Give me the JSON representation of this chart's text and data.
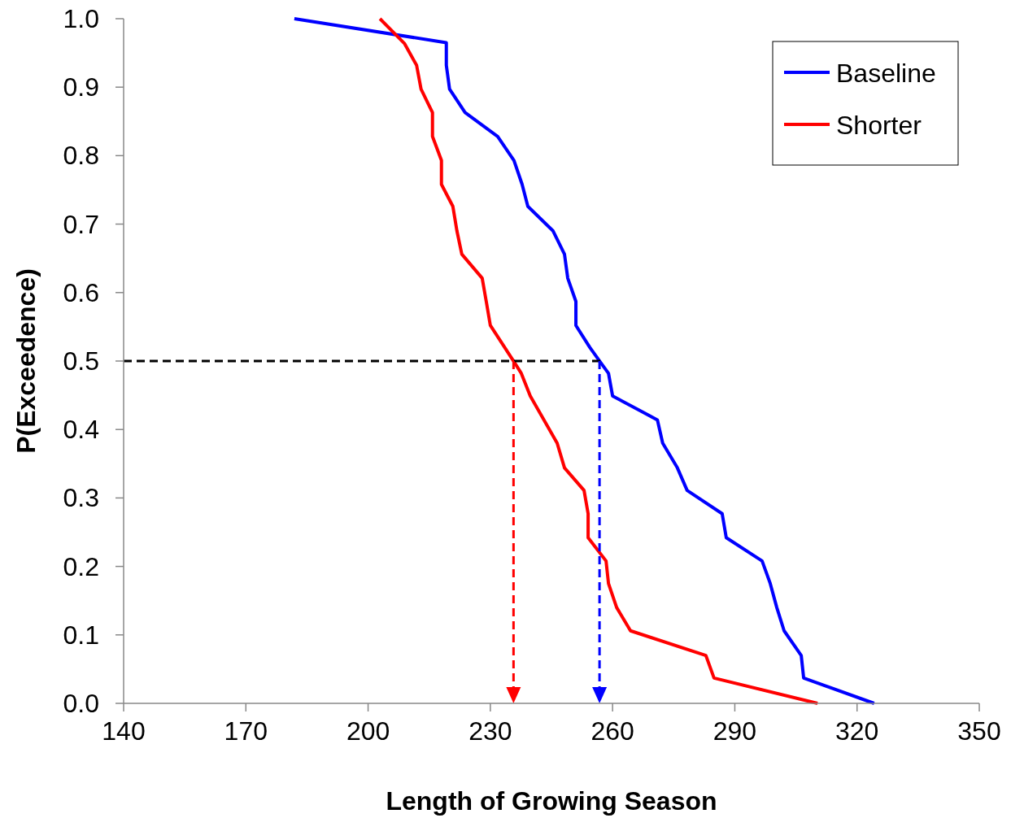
{
  "chart_data": {
    "type": "line",
    "xlabel": "Length of Growing Season",
    "ylabel": "P(Exceedence)",
    "xlim": [
      140,
      350
    ],
    "xticks": [
      140,
      170,
      200,
      230,
      260,
      290,
      320,
      350
    ],
    "ylim": [
      0,
      1
    ],
    "yticks": [
      {
        "value": 0,
        "label": "0.0"
      },
      {
        "value": 0.1,
        "label": "0.1"
      },
      {
        "value": 0.2,
        "label": "0.2"
      },
      {
        "value": 0.3,
        "label": "0.3"
      },
      {
        "value": 0.4,
        "label": "0.4"
      },
      {
        "value": 0.5,
        "label": "0.5"
      },
      {
        "value": 0.6,
        "label": "0.6"
      },
      {
        "value": 0.7,
        "label": "0.7"
      },
      {
        "value": 0.8,
        "label": "0.8"
      },
      {
        "value": 0.9,
        "label": "0.9"
      },
      {
        "value": 1,
        "label": "1.0"
      }
    ],
    "grid": false,
    "legend": "top right",
    "marker": "none",
    "line_style": "solid",
    "series": [
      {
        "name": "Baseline",
        "color": "#0000ff",
        "x": [
          181.9,
          219.2,
          219.2,
          220,
          223.8,
          231.8,
          235.8,
          237.8,
          239.2,
          245.4,
          248.2,
          249,
          251,
          251,
          254.4,
          257.4,
          259,
          260,
          271,
          272.3,
          275.9,
          278.3,
          286.9,
          287.9,
          296.7,
          298.7,
          300.3,
          302.1,
          306.3,
          306.9,
          324.2
        ],
        "values": [
          1,
          0.965,
          0.932,
          0.897,
          0.863,
          0.828,
          0.793,
          0.758,
          0.726,
          0.69,
          0.656,
          0.621,
          0.587,
          0.552,
          0.52,
          0.495,
          0.482,
          0.449,
          0.414,
          0.38,
          0.344,
          0.311,
          0.277,
          0.242,
          0.208,
          0.175,
          0.14,
          0.106,
          0.07,
          0.037,
          0
        ]
      },
      {
        "name": "Shorter",
        "color": "#ff0000",
        "x": [
          202.9,
          208.9,
          211.9,
          213,
          215.8,
          215.8,
          218,
          218,
          220.8,
          221.8,
          223,
          228,
          229,
          230,
          235.8,
          237.6,
          239.8,
          246.4,
          248.2,
          253,
          254,
          254,
          258.4,
          259,
          261,
          264.4,
          282.9,
          284.9,
          310.3
        ],
        "values": [
          1,
          0.964,
          0.932,
          0.897,
          0.863,
          0.828,
          0.793,
          0.758,
          0.726,
          0.69,
          0.656,
          0.621,
          0.587,
          0.552,
          0.499,
          0.482,
          0.449,
          0.38,
          0.344,
          0.311,
          0.277,
          0.242,
          0.208,
          0.175,
          0.14,
          0.106,
          0.07,
          0.037,
          0
        ]
      },
      {
        "color": "#000000",
        "line_style": "dashed",
        "x": [
          140,
          257.4
        ],
        "values": [
          0.5,
          0.5
        ]
      }
    ]
  }
}
